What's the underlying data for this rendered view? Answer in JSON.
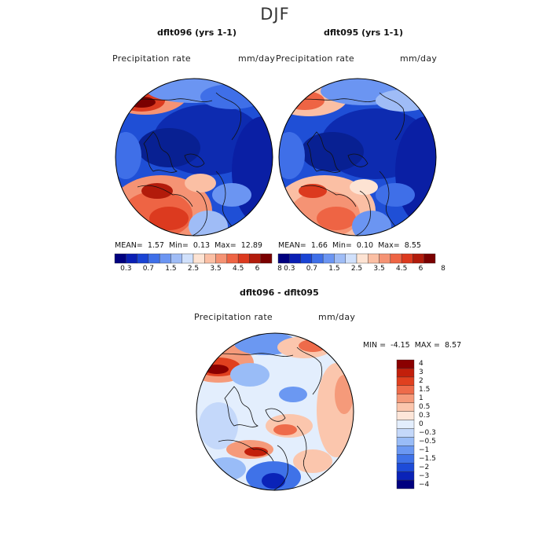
{
  "page": {
    "title": "DJF"
  },
  "panels": [
    {
      "title": "dflt096 (yrs 1-1)",
      "variable": "Precipitation rate",
      "units": "mm/day",
      "stats": {
        "mean_label": "MEAN=",
        "mean": "1.57",
        "min_label": "Min=",
        "min": "0.13",
        "max_label": "Max=",
        "max": "12.89"
      }
    },
    {
      "title": "dflt095 (yrs 1-1)",
      "variable": "Precipitation rate",
      "units": "mm/day",
      "stats": {
        "mean_label": "MEAN=",
        "mean": "1.66",
        "min_label": "Min=",
        "min": "0.10",
        "max_label": "Max=",
        "max": "8.55"
      }
    },
    {
      "title": "dflt096 - dflt095",
      "variable": "Precipitation rate",
      "units": "mm/day",
      "stats": {
        "min_label": "MIN =",
        "min": "-4.15",
        "max_label": "MAX =",
        "max": "8.57"
      }
    }
  ],
  "legend_abs": {
    "colors": [
      "#00007f",
      "#0a1fb4",
      "#1a44d4",
      "#3f6fe8",
      "#6b95f2",
      "#9fbcf6",
      "#d0e0fb",
      "#fde3d3",
      "#fbbfa4",
      "#f59374",
      "#ee6444",
      "#dc3a1f",
      "#b21b0b",
      "#7a0000"
    ],
    "ticks": [
      "0.3",
      "0.7",
      "1.5",
      "2.5",
      "3.5",
      "4.5",
      "6",
      "8"
    ]
  },
  "legend_diff": {
    "colors": [
      "#00007f",
      "#0a23b8",
      "#1d4bd8",
      "#3f72e8",
      "#6b98f2",
      "#99bcf7",
      "#c4d8fa",
      "#e3eefd",
      "#fde6d9",
      "#fbc6ad",
      "#f59a7a",
      "#ee6b4a",
      "#e0401f",
      "#c21f0b",
      "#8a0000"
    ],
    "ticks": [
      "4",
      "3",
      "2",
      "1.5",
      "1",
      "0.5",
      "0.3",
      "0",
      "−0.3",
      "−0.5",
      "−1",
      "−1.5",
      "−2",
      "−3",
      "−4"
    ]
  }
}
